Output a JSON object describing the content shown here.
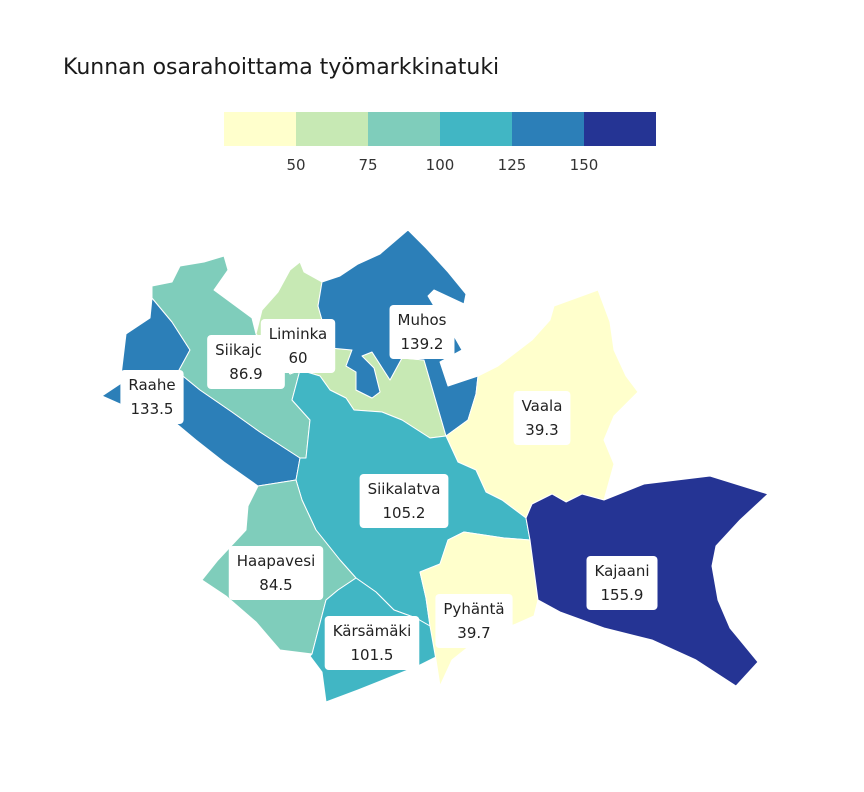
{
  "chart_data": {
    "type": "choropleth",
    "title": "Kunnan osarahoittama työmarkkinatuki",
    "legend": {
      "placement": "top",
      "ticks": [
        50,
        75,
        100,
        125,
        150
      ],
      "bins": [
        {
          "max": 50,
          "color": "#ffffcc"
        },
        {
          "min": 50,
          "max": 75,
          "color": "#c7e9b4"
        },
        {
          "min": 75,
          "max": 100,
          "color": "#7fcdbb"
        },
        {
          "min": 100,
          "max": 125,
          "color": "#41b6c4"
        },
        {
          "min": 125,
          "max": 150,
          "color": "#2c7fb8"
        },
        {
          "min": 150,
          "color": "#253494"
        }
      ]
    },
    "regions": [
      {
        "name": "Raahe",
        "value": "133.5"
      },
      {
        "name": "Siikajoki",
        "value": "86.9"
      },
      {
        "name": "Liminka",
        "value": "60"
      },
      {
        "name": "Muhos",
        "value": "139.2"
      },
      {
        "name": "Vaala",
        "value": "39.3"
      },
      {
        "name": "Siikalatva",
        "value": "105.2"
      },
      {
        "name": "Haapavesi",
        "value": "84.5"
      },
      {
        "name": "Kärsämäki",
        "value": "101.5"
      },
      {
        "name": "Pyhäntä",
        "value": "39.7"
      },
      {
        "name": "Kajaani",
        "value": "155.9"
      }
    ]
  }
}
